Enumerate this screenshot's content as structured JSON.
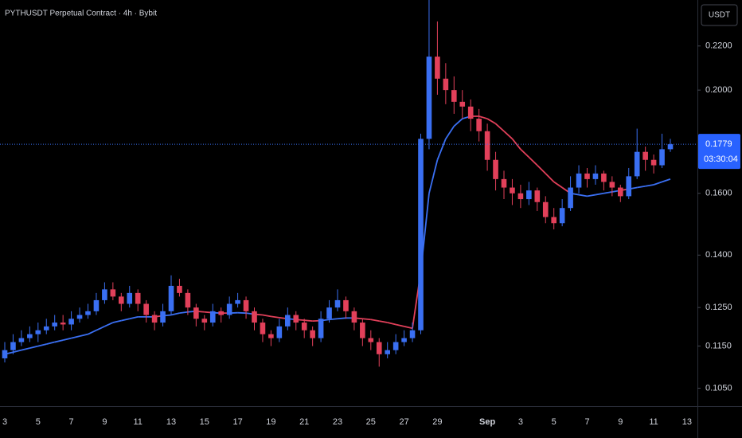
{
  "chart_data": {
    "type": "candlestick",
    "title": "PYTHUSDT Perpetual Contract · 4h · Bybit",
    "currency": "USDT",
    "countdown": "03:30:04",
    "up_color": "#3a6ff2",
    "down_color": "#e2405a",
    "log_scale": true,
    "ylim": [
      0.101,
      0.243
    ],
    "yticks": [
      {
        "value": 0.105,
        "label": "0.1050"
      },
      {
        "value": 0.115,
        "label": "0.1150"
      },
      {
        "value": 0.125,
        "label": "0.1250"
      },
      {
        "value": 0.14,
        "label": "0.1400"
      },
      {
        "value": 0.16,
        "label": "0.1600"
      },
      {
        "value": 0.2,
        "label": "0.2000"
      },
      {
        "value": 0.22,
        "label": "0.2200"
      }
    ],
    "categories": [
      "3",
      null,
      null,
      null,
      "5",
      null,
      null,
      null,
      "7",
      null,
      null,
      null,
      "9",
      null,
      null,
      null,
      "11",
      null,
      null,
      null,
      "13",
      null,
      null,
      null,
      "15",
      null,
      null,
      null,
      "17",
      null,
      null,
      null,
      "19",
      null,
      null,
      null,
      "21",
      null,
      null,
      null,
      "23",
      null,
      null,
      null,
      "25",
      null,
      null,
      null,
      "27",
      null,
      null,
      null,
      "29",
      null,
      null,
      null,
      null,
      null,
      "Sep",
      null,
      null,
      null,
      "3",
      null,
      null,
      null,
      "5",
      null,
      null,
      null,
      "7",
      null,
      null,
      null,
      "9",
      null,
      null,
      null,
      "11",
      null,
      null,
      null,
      "13"
    ],
    "open": [
      0.112,
      0.114,
      0.116,
      0.117,
      0.118,
      0.119,
      0.12,
      0.121,
      0.1205,
      0.122,
      0.123,
      0.124,
      0.127,
      0.13,
      0.128,
      0.126,
      0.129,
      0.126,
      0.123,
      0.121,
      0.124,
      0.131,
      0.129,
      0.125,
      0.122,
      0.121,
      0.124,
      0.123,
      0.126,
      0.127,
      0.124,
      0.121,
      0.118,
      0.117,
      0.12,
      0.123,
      0.121,
      0.119,
      0.117,
      0.122,
      0.125,
      0.127,
      0.124,
      0.121,
      0.117,
      0.116,
      0.113,
      0.114,
      0.116,
      0.117,
      0.119,
      0.18,
      0.215,
      0.205,
      0.2,
      0.195,
      0.193,
      0.188,
      0.183,
      0.172,
      0.165,
      0.162,
      0.16,
      0.158,
      0.161,
      0.157,
      0.152,
      0.15,
      0.155,
      0.162,
      0.167,
      0.165,
      0.167,
      0.164,
      0.162,
      0.159,
      0.166,
      0.175,
      0.172,
      0.17,
      0.176,
      null,
      null
    ],
    "high": [
      0.116,
      0.118,
      0.119,
      0.12,
      0.121,
      0.122,
      0.123,
      0.123,
      0.124,
      0.125,
      0.126,
      0.129,
      0.132,
      0.132,
      0.129,
      0.131,
      0.13,
      0.127,
      0.124,
      0.126,
      0.134,
      0.133,
      0.13,
      0.126,
      0.123,
      0.126,
      0.125,
      0.128,
      0.129,
      0.128,
      0.125,
      0.122,
      0.119,
      0.122,
      0.125,
      0.124,
      0.122,
      0.12,
      0.124,
      0.127,
      0.13,
      0.128,
      0.125,
      0.122,
      0.119,
      0.117,
      0.116,
      0.118,
      0.119,
      0.121,
      0.182,
      0.243,
      0.232,
      0.212,
      0.206,
      0.2,
      0.196,
      0.192,
      0.186,
      0.175,
      0.168,
      0.165,
      0.163,
      0.164,
      0.162,
      0.159,
      0.155,
      0.158,
      0.166,
      0.17,
      0.169,
      0.17,
      0.168,
      0.166,
      0.163,
      0.169,
      0.184,
      0.177,
      0.174,
      0.182,
      0.18,
      null,
      null
    ],
    "low": [
      0.111,
      0.113,
      0.115,
      0.116,
      0.116,
      0.118,
      0.119,
      0.119,
      0.119,
      0.121,
      0.122,
      0.123,
      0.126,
      0.127,
      0.124,
      0.125,
      0.124,
      0.121,
      0.119,
      0.12,
      0.123,
      0.128,
      0.123,
      0.12,
      0.119,
      0.12,
      0.121,
      0.122,
      0.125,
      0.122,
      0.119,
      0.116,
      0.115,
      0.116,
      0.119,
      0.119,
      0.117,
      0.115,
      0.116,
      0.121,
      0.124,
      0.122,
      0.119,
      0.115,
      0.114,
      0.11,
      0.112,
      0.113,
      0.115,
      0.116,
      0.118,
      0.176,
      0.198,
      0.194,
      0.19,
      0.188,
      0.183,
      0.179,
      0.168,
      0.161,
      0.158,
      0.156,
      0.155,
      0.156,
      0.154,
      0.15,
      0.148,
      0.149,
      0.154,
      0.16,
      0.162,
      0.163,
      0.161,
      0.159,
      0.157,
      0.158,
      0.165,
      0.168,
      0.167,
      0.169,
      0.175,
      null,
      null
    ],
    "close": [
      0.114,
      0.116,
      0.117,
      0.118,
      0.119,
      0.12,
      0.121,
      0.1205,
      0.122,
      0.123,
      0.124,
      0.127,
      0.13,
      0.128,
      0.126,
      0.129,
      0.126,
      0.123,
      0.121,
      0.124,
      0.131,
      0.129,
      0.125,
      0.122,
      0.121,
      0.124,
      0.123,
      0.126,
      0.127,
      0.124,
      0.121,
      0.118,
      0.117,
      0.12,
      0.123,
      0.121,
      0.119,
      0.117,
      0.122,
      0.125,
      0.127,
      0.124,
      0.121,
      0.117,
      0.116,
      0.113,
      0.114,
      0.116,
      0.117,
      0.119,
      0.18,
      0.215,
      0.205,
      0.2,
      0.195,
      0.193,
      0.188,
      0.183,
      0.172,
      0.165,
      0.162,
      0.16,
      0.158,
      0.161,
      0.157,
      0.152,
      0.15,
      0.155,
      0.162,
      0.167,
      0.165,
      0.167,
      0.164,
      0.162,
      0.159,
      0.166,
      0.175,
      0.172,
      0.17,
      0.176,
      0.1779,
      null,
      null
    ],
    "ma": [
      0.113,
      0.1135,
      0.114,
      0.1145,
      0.115,
      0.1155,
      0.116,
      0.1165,
      0.117,
      0.1175,
      0.118,
      0.119,
      0.12,
      0.121,
      0.1215,
      0.122,
      0.1225,
      0.1225,
      0.1225,
      0.1228,
      0.123,
      0.1235,
      0.1238,
      0.124,
      0.1238,
      0.1236,
      0.1235,
      0.1235,
      0.1236,
      0.1235,
      0.1232,
      0.123,
      0.1226,
      0.1223,
      0.122,
      0.1218,
      0.1216,
      0.1214,
      0.1215,
      0.1218,
      0.122,
      0.1222,
      0.1222,
      0.122,
      0.1218,
      0.1214,
      0.121,
      0.1205,
      0.12,
      0.1195,
      0.135,
      0.16,
      0.172,
      0.18,
      0.185,
      0.188,
      0.189,
      0.189,
      0.188,
      0.186,
      0.183,
      0.18,
      0.176,
      0.173,
      0.17,
      0.167,
      0.164,
      0.162,
      0.16,
      0.1595,
      0.159,
      0.1595,
      0.16,
      0.1605,
      0.161,
      0.1615,
      0.162,
      0.1625,
      0.163,
      0.164,
      0.165,
      null,
      null
    ]
  }
}
